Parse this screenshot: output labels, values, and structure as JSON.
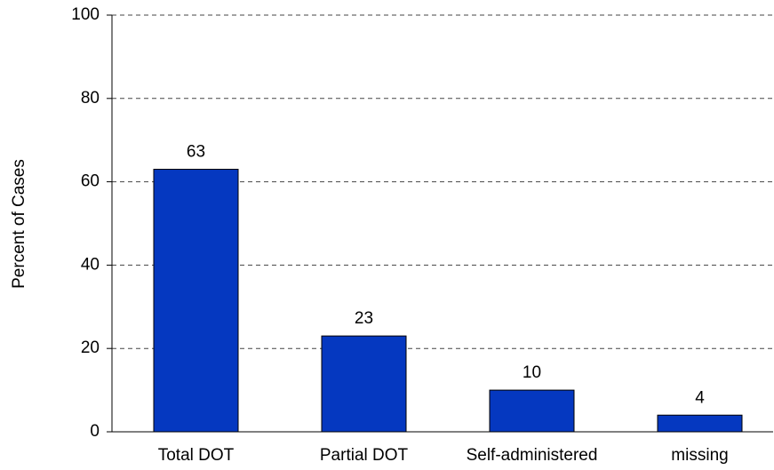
{
  "chart_data": {
    "type": "bar",
    "y_label": "Percent of Cases",
    "categories": [
      "Total DOT",
      "Partial DOT",
      "Self-administered",
      "missing"
    ],
    "values": [
      63,
      23,
      10,
      4
    ],
    "color": "#0538c0",
    "ylim": [
      0,
      100
    ],
    "yticks": [
      0,
      20,
      40,
      60,
      80,
      100
    ],
    "grid": true
  }
}
